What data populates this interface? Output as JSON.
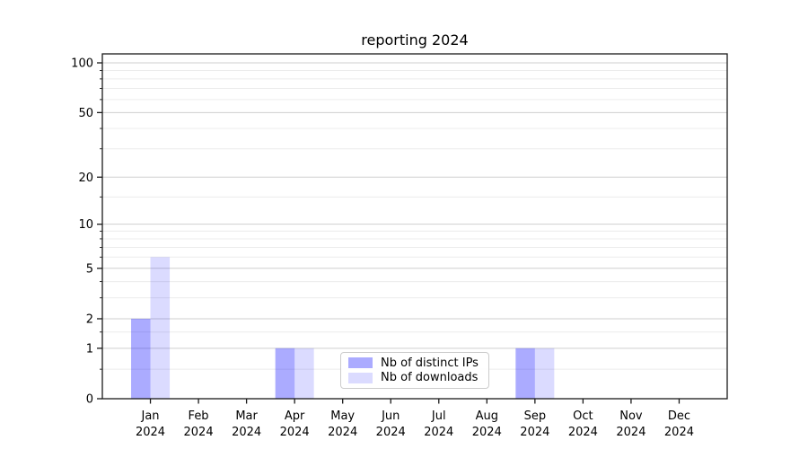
{
  "chart_data": {
    "type": "bar",
    "title": "reporting 2024",
    "x": {
      "months": [
        "Jan",
        "Feb",
        "Mar",
        "Apr",
        "May",
        "Jun",
        "Jul",
        "Aug",
        "Sep",
        "Oct",
        "Nov",
        "Dec"
      ],
      "year_label": "2024"
    },
    "series": [
      {
        "name": "Nb of distinct IPs",
        "color": "rgba(0,0,255,0.33)",
        "values": [
          2,
          0,
          0,
          1,
          0,
          0,
          0,
          0,
          1,
          0,
          0,
          0
        ]
      },
      {
        "name": "Nb of downloads",
        "color": "rgba(0,0,255,0.14)",
        "values": [
          6,
          0,
          0,
          1,
          0,
          0,
          0,
          0,
          1,
          0,
          0,
          0
        ]
      }
    ],
    "yscale": "log1p",
    "ylim": [
      0,
      113
    ],
    "yticks_major": [
      0,
      1,
      2,
      5,
      10,
      20,
      50,
      100
    ],
    "yticks_minor": [
      0.5,
      1.5,
      3,
      4,
      6,
      7,
      8,
      9,
      15,
      30,
      40,
      60,
      70,
      80,
      90
    ],
    "grid": "both",
    "legend": {
      "position": "lower center"
    }
  },
  "colors": {
    "grid_major": "#cfcfcf",
    "grid_minor": "#ececec",
    "spine": "#1a1a1a",
    "text": "#000000",
    "legend_border": "#cccccc"
  }
}
